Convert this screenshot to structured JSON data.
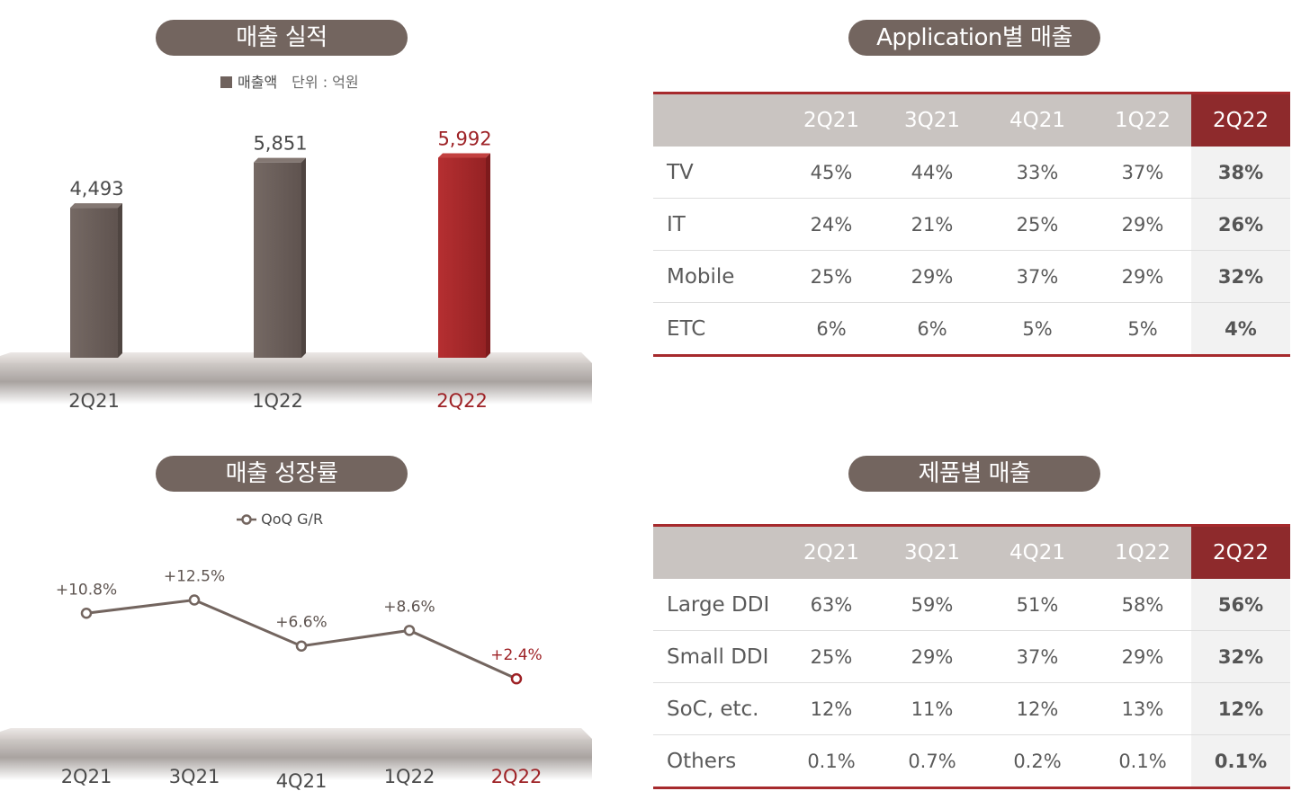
{
  "colors": {
    "pill": "#73655f",
    "bar_dark": "#6a5d58",
    "bar_highlight": "#a8292b",
    "line": "#73655f",
    "highlight_text": "#9e2226",
    "table_header": "#c9c4c1",
    "table_header_highlight": "#8e2a2c"
  },
  "sales": {
    "title": "매출 실적",
    "legend_label": "매출액",
    "unit": "단위 : 억원"
  },
  "growth": {
    "title": "매출 성장률",
    "legend_label": "QoQ G/R"
  },
  "application": {
    "title": "Application별 매출",
    "columns": [
      "2Q21",
      "3Q21",
      "4Q21",
      "1Q22",
      "2Q22"
    ],
    "rows": [
      {
        "label": "TV",
        "values": [
          "45%",
          "44%",
          "33%",
          "37%",
          "38%"
        ]
      },
      {
        "label": "IT",
        "values": [
          "24%",
          "21%",
          "25%",
          "29%",
          "26%"
        ]
      },
      {
        "label": "Mobile",
        "values": [
          "25%",
          "29%",
          "37%",
          "29%",
          "32%"
        ]
      },
      {
        "label": "ETC",
        "values": [
          "6%",
          "6%",
          "5%",
          "5%",
          "4%"
        ]
      }
    ]
  },
  "product": {
    "title": "제품별 매출",
    "columns": [
      "2Q21",
      "3Q21",
      "4Q21",
      "1Q22",
      "2Q22"
    ],
    "rows": [
      {
        "label": "Large DDI",
        "values": [
          "63%",
          "59%",
          "51%",
          "58%",
          "56%"
        ]
      },
      {
        "label": "Small DDI",
        "values": [
          "25%",
          "29%",
          "37%",
          "29%",
          "32%"
        ]
      },
      {
        "label": "SoC, etc.",
        "values": [
          "12%",
          "11%",
          "12%",
          "13%",
          "12%"
        ]
      },
      {
        "label": "Others",
        "values": [
          "0.1%",
          "0.7%",
          "0.2%",
          "0.1%",
          "0.1%"
        ]
      }
    ]
  },
  "chart_data": [
    {
      "type": "bar",
      "title": "매출 실적",
      "categories": [
        "2Q21",
        "1Q22",
        "2Q22"
      ],
      "values": [
        4493,
        5851,
        5992
      ],
      "value_labels": [
        "4,493",
        "5,851",
        "5,992"
      ],
      "series": [
        {
          "name": "매출액",
          "values": [
            4493,
            5851,
            5992
          ]
        }
      ],
      "highlight_index": 2,
      "ylim": [
        0,
        7000
      ]
    },
    {
      "type": "line",
      "title": "매출 성장률",
      "categories": [
        "2Q21",
        "3Q21",
        "4Q21",
        "1Q22",
        "2Q22"
      ],
      "values": [
        10.8,
        12.5,
        6.6,
        8.6,
        2.4
      ],
      "value_labels": [
        "+10.8%",
        "+12.5%",
        "+6.6%",
        "+8.6%",
        "+2.4%"
      ],
      "series": [
        {
          "name": "QoQ G/R",
          "values": [
            10.8,
            12.5,
            6.6,
            8.6,
            2.4
          ]
        }
      ],
      "highlight_index": 4
    }
  ]
}
